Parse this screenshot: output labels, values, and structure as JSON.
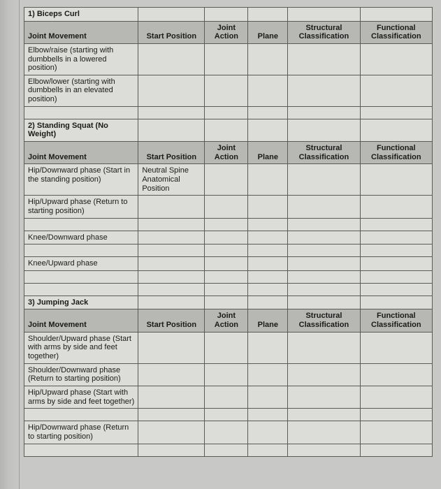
{
  "columns": {
    "joint_movement": "Joint Movement",
    "start_position": "Start Position",
    "joint_action": "Joint Action",
    "plane": "Plane",
    "structural": "Structural Classification",
    "functional": "Functional Classification"
  },
  "sections": [
    {
      "title": "1) Biceps Curl",
      "rows": [
        {
          "movement": "Elbow/raise (starting with dumbbells in a lowered position)",
          "start": "",
          "action": "",
          "plane": "",
          "struct": "",
          "func": ""
        },
        {
          "movement": "Elbow/lower (starting with dumbbells in an elevated position)",
          "start": "",
          "action": "",
          "plane": "",
          "struct": "",
          "func": ""
        },
        {
          "movement": "",
          "start": "",
          "action": "",
          "plane": "",
          "struct": "",
          "func": ""
        }
      ]
    },
    {
      "title": "2) Standing Squat (No Weight)",
      "rows": [
        {
          "movement": "Hip/Downward phase (Start in the standing position)",
          "start": "Neutral Spine Anatomical Position",
          "action": "",
          "plane": "",
          "struct": "",
          "func": ""
        },
        {
          "movement": "Hip/Upward phase (Return to starting position)",
          "start": "",
          "action": "",
          "plane": "",
          "struct": "",
          "func": ""
        },
        {
          "movement": "",
          "start": "",
          "action": "",
          "plane": "",
          "struct": "",
          "func": ""
        },
        {
          "movement": "Knee/Downward phase",
          "start": "",
          "action": "",
          "plane": "",
          "struct": "",
          "func": ""
        },
        {
          "movement": "",
          "start": "",
          "action": "",
          "plane": "",
          "struct": "",
          "func": ""
        },
        {
          "movement": "Knee/Upward phase",
          "start": "",
          "action": "",
          "plane": "",
          "struct": "",
          "func": ""
        },
        {
          "movement": "",
          "start": "",
          "action": "",
          "plane": "",
          "struct": "",
          "func": ""
        },
        {
          "movement": "",
          "start": "",
          "action": "",
          "plane": "",
          "struct": "",
          "func": ""
        }
      ]
    },
    {
      "title": "3) Jumping Jack",
      "rows": [
        {
          "movement": "Shoulder/Upward phase (Start with arms by side and feet together)",
          "start": "",
          "action": "",
          "plane": "",
          "struct": "",
          "func": ""
        },
        {
          "movement": "Shoulder/Downward phase (Return to starting position)",
          "start": "",
          "action": "",
          "plane": "",
          "struct": "",
          "func": ""
        },
        {
          "movement": "Hip/Upward phase (Start with arms by side and feet together)",
          "start": "",
          "action": "",
          "plane": "",
          "struct": "",
          "func": ""
        },
        {
          "movement": "",
          "start": "",
          "action": "",
          "plane": "",
          "struct": "",
          "func": ""
        },
        {
          "movement": "Hip/Downward phase (Return to starting position)",
          "start": "",
          "action": "",
          "plane": "",
          "struct": "",
          "func": ""
        },
        {
          "movement": "",
          "start": "",
          "action": "",
          "plane": "",
          "struct": "",
          "func": ""
        }
      ]
    }
  ]
}
